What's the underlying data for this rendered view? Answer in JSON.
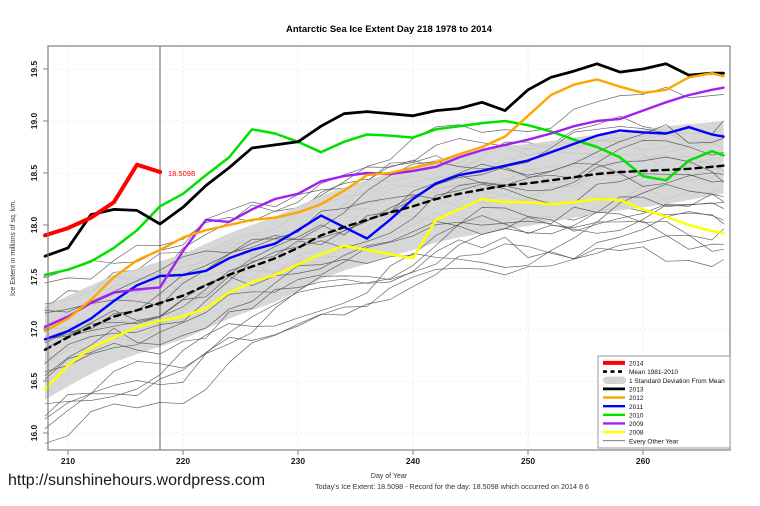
{
  "page": {
    "title": "Antarctic Sea Ice Extent Day 218 1978 to 2014",
    "site_url": "http://sunshinehours.wordpress.com",
    "footer_note": "Today's Ice Extent: 18.5098  - Record for the day: 18.5098 which occurred on 2014 8 6"
  },
  "annotation": {
    "text": "18.5098",
    "day": 218,
    "value": 18.5098,
    "color": "#FF0000"
  },
  "marker": {
    "day": 218,
    "color": "#606060"
  },
  "legend": {
    "position": "bottom-right",
    "items": [
      {
        "label": "2014",
        "swatch": "line",
        "color": "#FF0000",
        "weight": 4
      },
      {
        "label": "Mean 1981-2010",
        "swatch": "dashed",
        "color": "#000000",
        "weight": 2.6
      },
      {
        "label": "1 Standard Deviation From Mean",
        "swatch": "band",
        "color": "#D3D3D3"
      },
      {
        "label": "2013",
        "swatch": "line",
        "color": "#000000",
        "weight": 2.8
      },
      {
        "label": "2012",
        "swatch": "line",
        "color": "#FFA500",
        "weight": 2.4
      },
      {
        "label": "2011",
        "swatch": "line",
        "color": "#0000FF",
        "weight": 2.4
      },
      {
        "label": "2010",
        "swatch": "line",
        "color": "#00E100",
        "weight": 2.4
      },
      {
        "label": "2009",
        "swatch": "line",
        "color": "#A020F0",
        "weight": 2.4
      },
      {
        "label": "2008",
        "swatch": "line",
        "color": "#FFFF00",
        "weight": 2.4
      },
      {
        "label": "Every Other Year",
        "swatch": "thin",
        "color": "#4D4D4D",
        "weight": 0.8
      }
    ]
  },
  "chart_data": {
    "type": "line",
    "title": "Antarctic Sea Ice Extent Day 218 1978 to 2014",
    "xlabel": "Day of Year",
    "ylabel": "Ice Extent in millions of sq. km.",
    "xlim": [
      208,
      267.5
    ],
    "ylim": [
      15.85,
      19.72
    ],
    "x_ticks": [
      210,
      220,
      230,
      240,
      250,
      260
    ],
    "y_ticks": [
      16.0,
      16.5,
      17.0,
      17.5,
      18.0,
      18.5,
      19.0,
      19.5
    ],
    "grid": true,
    "legend_position": "bottom-right",
    "x": [
      208,
      210,
      212,
      214,
      216,
      218,
      220,
      222,
      224,
      226,
      228,
      230,
      232,
      234,
      236,
      238,
      240,
      242,
      244,
      246,
      248,
      250,
      252,
      254,
      256,
      258,
      260,
      262,
      264,
      266,
      267
    ],
    "series": [
      {
        "name": "2014",
        "color": "#FF0000",
        "width": 4,
        "values": [
          17.9,
          17.97,
          18.07,
          18.22,
          18.58,
          18.51,
          null,
          null,
          null,
          null,
          null,
          null,
          null,
          null,
          null,
          null,
          null,
          null,
          null,
          null,
          null,
          null,
          null,
          null,
          null,
          null,
          null,
          null,
          null,
          null,
          null
        ]
      },
      {
        "name": "2013",
        "color": "#000000",
        "width": 2.8,
        "values": [
          17.7,
          17.78,
          18.1,
          18.15,
          18.14,
          18.01,
          18.17,
          18.38,
          18.55,
          18.74,
          18.77,
          18.8,
          18.95,
          19.07,
          19.09,
          19.07,
          19.05,
          19.1,
          19.12,
          19.18,
          19.1,
          19.3,
          19.42,
          19.48,
          19.55,
          19.47,
          19.5,
          19.55,
          19.44,
          19.46,
          19.46
        ]
      },
      {
        "name": "2012",
        "color": "#FFA500",
        "width": 2.4,
        "values": [
          16.98,
          17.1,
          17.28,
          17.5,
          17.66,
          17.76,
          17.88,
          17.95,
          18.0,
          18.05,
          18.07,
          18.12,
          18.2,
          18.33,
          18.48,
          18.5,
          18.55,
          18.6,
          18.68,
          18.75,
          18.85,
          19.05,
          19.25,
          19.35,
          19.4,
          19.33,
          19.27,
          19.3,
          19.42,
          19.46,
          19.43
        ]
      },
      {
        "name": "2011",
        "color": "#0000FF",
        "width": 2.4,
        "values": [
          16.9,
          16.98,
          17.1,
          17.27,
          17.42,
          17.51,
          17.52,
          17.56,
          17.68,
          17.76,
          17.82,
          17.95,
          18.09,
          17.98,
          17.87,
          18.05,
          18.25,
          18.4,
          18.48,
          18.52,
          18.57,
          18.62,
          18.7,
          18.78,
          18.86,
          18.91,
          18.89,
          18.88,
          18.94,
          18.87,
          18.85
        ]
      },
      {
        "name": "2010",
        "color": "#00E100",
        "width": 2.5,
        "values": [
          17.52,
          17.57,
          17.65,
          17.78,
          17.95,
          18.18,
          18.3,
          18.48,
          18.65,
          18.92,
          18.88,
          18.8,
          18.7,
          18.8,
          18.87,
          18.86,
          18.84,
          18.92,
          18.95,
          18.98,
          19.0,
          18.96,
          18.9,
          18.82,
          18.75,
          18.65,
          18.47,
          18.43,
          18.62,
          18.71,
          18.67
        ]
      },
      {
        "name": "2009",
        "color": "#A020F0",
        "width": 2.4,
        "values": [
          17.02,
          17.12,
          17.25,
          17.35,
          17.38,
          17.4,
          17.75,
          18.05,
          18.03,
          18.15,
          18.25,
          18.3,
          18.42,
          18.47,
          18.5,
          18.49,
          18.52,
          18.56,
          18.65,
          18.72,
          18.77,
          18.82,
          18.88,
          18.95,
          19.0,
          19.02,
          19.1,
          19.18,
          19.25,
          19.3,
          19.32
        ]
      },
      {
        "name": "2008",
        "color": "#FFFF00",
        "width": 2.5,
        "values": [
          16.42,
          16.65,
          16.82,
          16.92,
          17.02,
          17.08,
          17.12,
          17.2,
          17.35,
          17.45,
          17.52,
          17.62,
          17.72,
          17.8,
          17.76,
          17.72,
          17.68,
          18.05,
          18.15,
          18.25,
          18.22,
          18.22,
          18.2,
          18.22,
          18.25,
          18.24,
          18.15,
          18.08,
          18.0,
          17.94,
          17.92
        ]
      }
    ],
    "mean": {
      "name": "Mean 1981-2010",
      "color": "#000000",
      "width": 2.4,
      "dash": "6,5",
      "values": [
        16.8,
        16.92,
        17.02,
        17.12,
        17.18,
        17.25,
        17.32,
        17.42,
        17.52,
        17.6,
        17.68,
        17.78,
        17.9,
        17.98,
        18.05,
        18.12,
        18.18,
        18.25,
        18.3,
        18.34,
        18.38,
        18.4,
        18.43,
        18.46,
        18.49,
        18.51,
        18.52,
        18.53,
        18.54,
        18.56,
        18.57
      ]
    },
    "band": {
      "name": "1 Standard Deviation From Mean",
      "color": "#D3D3D3",
      "upper": [
        17.22,
        17.32,
        17.42,
        17.52,
        17.58,
        17.65,
        17.72,
        17.82,
        17.92,
        18.0,
        18.08,
        18.18,
        18.28,
        18.36,
        18.43,
        18.5,
        18.56,
        18.63,
        18.68,
        18.72,
        18.76,
        18.78,
        18.81,
        18.84,
        18.87,
        18.89,
        18.92,
        18.95,
        18.97,
        18.99,
        19.0
      ],
      "lower": [
        16.32,
        16.45,
        16.57,
        16.68,
        16.76,
        16.83,
        16.9,
        17.0,
        17.1,
        17.18,
        17.26,
        17.36,
        17.48,
        17.56,
        17.63,
        17.7,
        17.76,
        17.83,
        17.88,
        17.92,
        17.96,
        17.99,
        18.03,
        18.07,
        18.11,
        18.14,
        18.17,
        18.2,
        18.24,
        18.28,
        18.3
      ]
    },
    "background_years": {
      "name": "Every Other Year",
      "color": "#4D4D4D",
      "count": 28,
      "description": "thin gray lines for all other years 1978-2012, spread roughly mean -0.8 to +0.55",
      "seed": 7,
      "offset_range": [
        -0.78,
        0.54
      ],
      "noise": 0.14
    }
  }
}
